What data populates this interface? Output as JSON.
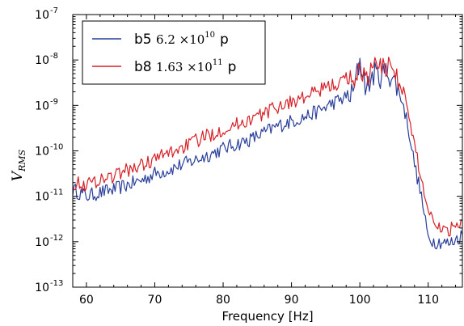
{
  "chart_data": {
    "type": "line",
    "title": "",
    "xlabel": "Frequency [Hz]",
    "ylabel": {
      "main": "V",
      "sub": "RMS"
    },
    "xlim": [
      58,
      115
    ],
    "ylim_log10": [
      -13,
      -7
    ],
    "y_scale": "log",
    "grid": false,
    "legend_position": "top-left",
    "x_ticks": [
      {
        "value": 60,
        "label": "60"
      },
      {
        "value": 70,
        "label": "70"
      },
      {
        "value": 80,
        "label": "80"
      },
      {
        "value": 90,
        "label": "90"
      },
      {
        "value": 100,
        "label": "100"
      },
      {
        "value": 110,
        "label": "110"
      }
    ],
    "y_ticks": [
      {
        "exp": -13,
        "base": "10",
        "sup": "-13"
      },
      {
        "exp": -12,
        "base": "10",
        "sup": "-12"
      },
      {
        "exp": -11,
        "base": "10",
        "sup": "-11"
      },
      {
        "exp": -10,
        "base": "10",
        "sup": "-10"
      },
      {
        "exp": -9,
        "base": "10",
        "sup": "-9"
      },
      {
        "exp": -8,
        "base": "10",
        "sup": "-8"
      },
      {
        "exp": -7,
        "base": "10",
        "sup": "-7"
      }
    ],
    "series": [
      {
        "name": "b5",
        "legend_value": "6.2",
        "legend_times": "×10",
        "legend_exp": "10",
        "legend_unit": "p",
        "color": "#2a3f9a",
        "x": [
          58,
          60,
          62,
          64,
          66,
          68,
          70,
          72,
          74,
          76,
          78,
          80,
          82,
          84,
          86,
          88,
          90,
          92,
          94,
          96,
          98,
          99,
          100,
          101,
          102,
          103,
          104,
          105,
          106,
          107,
          108,
          109,
          109.5,
          110,
          111,
          112,
          113,
          114,
          115
        ],
        "log10y": [
          -10.85,
          -11.0,
          -10.92,
          -10.85,
          -10.75,
          -10.65,
          -10.5,
          -10.42,
          -10.3,
          -10.2,
          -10.08,
          -9.95,
          -9.85,
          -9.75,
          -9.6,
          -9.45,
          -9.35,
          -9.25,
          -9.12,
          -8.95,
          -8.82,
          -8.75,
          -8.0,
          -8.65,
          -8.3,
          -8.35,
          -8.25,
          -8.45,
          -8.8,
          -9.4,
          -10.3,
          -11.0,
          -11.5,
          -11.9,
          -12.0,
          -12.0,
          -12.05,
          -11.95,
          -11.85
        ]
      },
      {
        "name": "b8",
        "legend_value": "1.63",
        "legend_times": "×10",
        "legend_exp": "11",
        "legend_unit": "p",
        "color": "#d62027",
        "x": [
          58,
          60,
          62,
          64,
          66,
          68,
          70,
          72,
          74,
          76,
          78,
          80,
          82,
          84,
          86,
          88,
          90,
          92,
          94,
          96,
          98,
          99,
          100,
          101,
          102,
          103,
          104,
          105,
          106,
          107,
          108,
          109,
          109.5,
          110,
          111,
          112,
          113,
          114,
          115
        ],
        "log10y": [
          -10.7,
          -10.75,
          -10.62,
          -10.55,
          -10.42,
          -10.32,
          -10.18,
          -10.05,
          -9.92,
          -9.78,
          -9.65,
          -9.52,
          -9.42,
          -9.3,
          -9.18,
          -9.02,
          -8.92,
          -8.82,
          -8.68,
          -8.55,
          -8.45,
          -8.4,
          -8.25,
          -8.35,
          -8.15,
          -8.2,
          -8.1,
          -8.2,
          -8.5,
          -9.1,
          -9.9,
          -10.6,
          -11.0,
          -11.3,
          -11.55,
          -11.7,
          -11.75,
          -11.6,
          -11.5
        ]
      }
    ]
  }
}
